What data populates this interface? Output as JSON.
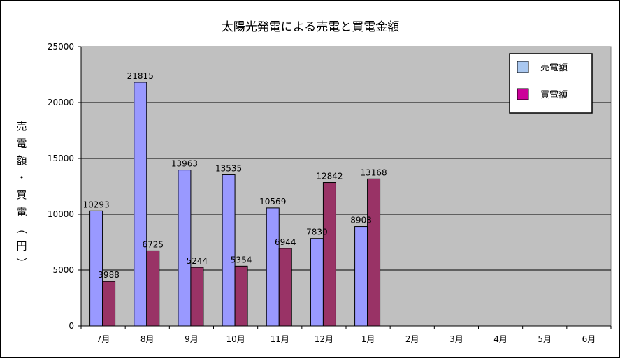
{
  "chart_data": {
    "type": "bar",
    "title": "太陽光発電による売電と買電金額",
    "ylabel": "売電額・買電（円）",
    "xlabel": "",
    "categories": [
      "7月",
      "8月",
      "9月",
      "10月",
      "11月",
      "12月",
      "1月",
      "2月",
      "3月",
      "4月",
      "5月",
      "6月"
    ],
    "series": [
      {
        "name": "売電額",
        "color": "#9999ff",
        "values": [
          10293,
          21815,
          13963,
          13535,
          10569,
          7830,
          8903,
          null,
          null,
          null,
          null,
          null
        ]
      },
      {
        "name": "買電額",
        "color": "#993366",
        "values": [
          3988,
          6725,
          5244,
          5354,
          6944,
          12842,
          13168,
          null,
          null,
          null,
          null,
          null
        ]
      }
    ],
    "ylim": [
      0,
      25000
    ],
    "yticks": [
      0,
      5000,
      10000,
      15000,
      20000,
      25000
    ],
    "grid": true,
    "plot_background": "#c0c0c0",
    "legend": {
      "position": "top-right",
      "swatch_colors": [
        "#aac8f0",
        "#cc0099"
      ]
    }
  }
}
